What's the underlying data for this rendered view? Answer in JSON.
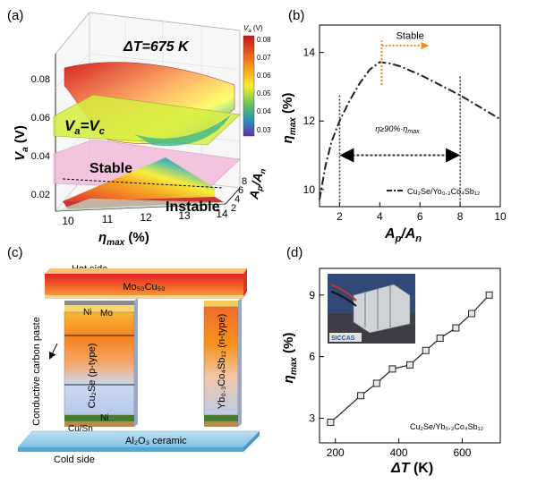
{
  "panels": {
    "a": {
      "label": "(a)",
      "delta_t": "ΔT=675 K",
      "zlabel_main": "V",
      "zlabel_sub": "a",
      "zlabel_unit": " (V)",
      "xlabel_main": "η",
      "xlabel_sub": "max",
      "xlabel_unit": " (%)",
      "ylabel": "A",
      "ylabel_p": "p",
      "ylabel_slash": "/A",
      "ylabel_n": "n",
      "z_ticks": [
        "0.02",
        "0.04",
        "0.06",
        "0.08"
      ],
      "x_ticks": [
        "10",
        "11",
        "12",
        "13",
        "14"
      ],
      "y_ticks": [
        "2",
        "4",
        "6",
        "8"
      ],
      "plane_label_main": "V",
      "plane_label_a": "a",
      "plane_label_eq": "=V",
      "plane_label_c": "c",
      "stable": "Stable",
      "instable": "Instable",
      "colorbar_title": "V",
      "colorbar_title_sub": "a",
      "colorbar_title_unit": " (V)",
      "colorbar_ticks": [
        "0.08",
        "0.07",
        "0.06",
        "0.05",
        "0.04",
        "0.03"
      ],
      "colors": {
        "high": "#d7191c",
        "mid": "#ffff33",
        "low": "#2b83ba",
        "plane": "#d9f04d",
        "stable_plane": "#f2b8d9"
      }
    },
    "b": {
      "label": "(b)",
      "ylabel_main": "η",
      "ylabel_sub": "max",
      "ylabel_unit": " (%)",
      "xlabel_main": "A",
      "xlabel_p": "p",
      "xlabel_slash": "/A",
      "xlabel_n": "n",
      "stable": "Stable",
      "annotation": "η≥90%·η",
      "annotation_sub": "max",
      "legend": "Cu₂Se/Yo₀.₃Co₄Sb₁₂",
      "x_ticks": [
        "2",
        "4",
        "6",
        "8",
        "10"
      ],
      "y_ticks": [
        "10",
        "12",
        "14"
      ],
      "accent": "#f08a24"
    },
    "c": {
      "label": "(c)",
      "hot_side": "Hot side",
      "cold_side": "Cold side",
      "top_electrode": "Mo₅₀Cu₅₀",
      "ceramic": "Al₂O₃ ceramic",
      "ni_top": "Ni",
      "mo": "Mo",
      "p_leg": "Cu₂Se (p-type)",
      "n_leg": "Yb₀.₃Co₄Sb₁₂ (n-type)",
      "ni_bottom": "Ni",
      "cusn": "Cu/Sn",
      "carbon_paste": "Conductive carbon paste"
    },
    "d": {
      "label": "(d)",
      "ylabel_main": "η",
      "ylabel_sub": "max",
      "ylabel_unit": " (%)",
      "xlabel": "ΔT",
      "xlabel_unit": " (K)",
      "x_ticks": [
        "200",
        "400",
        "600"
      ],
      "y_ticks": [
        "3",
        "6",
        "9"
      ],
      "legend": "Cu₂Se/Yb₀.₃Co₄Sb₁₂",
      "photo_logo": "SICCAS"
    }
  },
  "chart_data": [
    {
      "panel": "b",
      "type": "line",
      "title": "",
      "xlabel": "Ap/An",
      "ylabel": "ηmax (%)",
      "xlim": [
        1,
        10
      ],
      "ylim": [
        9.5,
        14.8
      ],
      "series": [
        {
          "name": "Cu₂Se/Yo₀.₃Co₄Sb₁₂",
          "x": [
            1.0,
            1.3,
            1.6,
            2.0,
            2.5,
            3.0,
            3.5,
            4.0,
            4.5,
            5.0,
            6.0,
            7.0,
            8.0,
            9.0,
            10.0
          ],
          "y": [
            9.7,
            10.7,
            11.4,
            12.0,
            12.6,
            13.1,
            13.5,
            13.72,
            13.68,
            13.6,
            13.35,
            13.05,
            12.75,
            12.4,
            12.05
          ]
        }
      ],
      "annotations": {
        "bracket_x": [
          2,
          8
        ],
        "optimum_x": 4.1,
        "stable_label": "Stable"
      }
    },
    {
      "panel": "d",
      "type": "line",
      "title": "",
      "xlabel": "ΔT (K)",
      "ylabel": "ηmax (%)",
      "xlim": [
        150,
        720
      ],
      "ylim": [
        1.8,
        10.3
      ],
      "series": [
        {
          "name": "Cu₂Se/Yb₀.₃Co₄Sb₁₂",
          "x": [
            185,
            280,
            330,
            380,
            435,
            485,
            530,
            580,
            630,
            685
          ],
          "y": [
            2.8,
            4.1,
            4.7,
            5.4,
            5.6,
            6.3,
            6.9,
            7.4,
            8.1,
            9.0
          ]
        }
      ]
    }
  ]
}
